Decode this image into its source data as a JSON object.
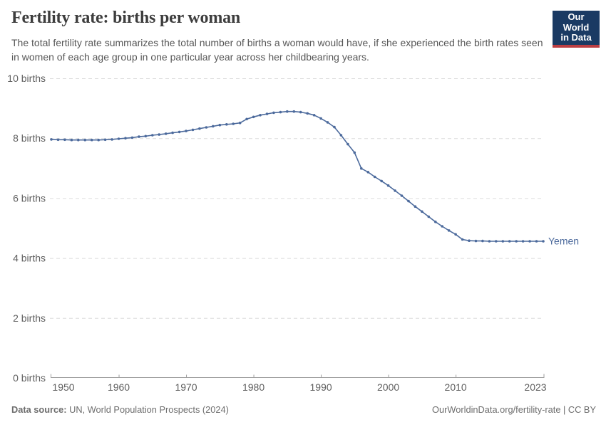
{
  "header": {
    "title": "Fertility rate: births per woman",
    "subtitle": "The total fertility rate summarizes the total number of births a woman would have, if she experienced the birth rates seen in women of each age group in one particular year across her childbearing years.",
    "logo": {
      "line1": "Our World",
      "line2": "in Data"
    }
  },
  "footer": {
    "source_label": "Data source:",
    "source_text": " UN, World Population Prospects (2024)",
    "link_text": "OurWorldinData.org/fertility-rate | CC BY"
  },
  "colors": {
    "series_blue": "#4c6a9c",
    "grid": "#dcdcdc",
    "axis": "#9e9e9e",
    "tick_text": "#606060",
    "logo_bg": "#1a3a63",
    "logo_red": "#bc3e42"
  },
  "chart_data": {
    "type": "line",
    "title": "Fertility rate: births per woman",
    "xlabel": "",
    "ylabel": "births per woman",
    "xlim": [
      1950,
      2023
    ],
    "ylim": [
      0,
      10
    ],
    "grid": "horizontal-dashed",
    "legend_position": "end-of-line",
    "x_ticks": [
      1950,
      1960,
      1970,
      1980,
      1990,
      2000,
      2010,
      2023
    ],
    "x_tick_labels": [
      "1950",
      "1960",
      "1970",
      "1980",
      "1990",
      "2000",
      "2010",
      "2023"
    ],
    "y_ticks": [
      0,
      2,
      4,
      6,
      8,
      10
    ],
    "y_tick_labels": [
      "0 births",
      "2 births",
      "4 births",
      "6 births",
      "8 births",
      "10 births"
    ],
    "series": [
      {
        "name": "Yemen",
        "color": "#4c6a9c",
        "x": [
          1950,
          1951,
          1952,
          1953,
          1954,
          1955,
          1956,
          1957,
          1958,
          1959,
          1960,
          1961,
          1962,
          1963,
          1964,
          1965,
          1966,
          1967,
          1968,
          1969,
          1970,
          1971,
          1972,
          1973,
          1974,
          1975,
          1976,
          1977,
          1978,
          1979,
          1980,
          1981,
          1982,
          1983,
          1984,
          1985,
          1986,
          1987,
          1988,
          1989,
          1990,
          1991,
          1992,
          1993,
          1994,
          1995,
          1996,
          1997,
          1998,
          1999,
          2000,
          2001,
          2002,
          2003,
          2004,
          2005,
          2006,
          2007,
          2008,
          2009,
          2010,
          2011,
          2012,
          2013,
          2014,
          2015,
          2016,
          2017,
          2018,
          2019,
          2020,
          2021,
          2022,
          2023
        ],
        "values": [
          7.96,
          7.95,
          7.95,
          7.94,
          7.94,
          7.94,
          7.94,
          7.94,
          7.95,
          7.96,
          7.98,
          8.0,
          8.02,
          8.05,
          8.07,
          8.1,
          8.12,
          8.15,
          8.18,
          8.21,
          8.24,
          8.28,
          8.32,
          8.36,
          8.4,
          8.44,
          8.46,
          8.48,
          8.51,
          8.64,
          8.71,
          8.77,
          8.81,
          8.85,
          8.87,
          8.89,
          8.89,
          8.87,
          8.83,
          8.77,
          8.66,
          8.53,
          8.37,
          8.1,
          7.8,
          7.52,
          6.99,
          6.87,
          6.71,
          6.57,
          6.42,
          6.25,
          6.08,
          5.9,
          5.72,
          5.55,
          5.38,
          5.21,
          5.06,
          4.92,
          4.79,
          4.62,
          4.58,
          4.57,
          4.57,
          4.56,
          4.56,
          4.56,
          4.56,
          4.56,
          4.56,
          4.56,
          4.56,
          4.56
        ]
      }
    ]
  }
}
